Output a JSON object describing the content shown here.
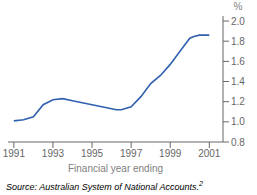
{
  "chart_data": {
    "type": "line",
    "xlabel": "Financial year ending",
    "ylabel": "%",
    "x": [
      1991,
      1991.5,
      1992,
      1992.5,
      1993,
      1993.5,
      1994,
      1994.5,
      1995,
      1995.5,
      1996,
      1996.25,
      1996.5,
      1997,
      1997.5,
      1998,
      1998.5,
      1999,
      1999.5,
      2000,
      2000.25,
      2000.5,
      2001
    ],
    "values": [
      1.01,
      1.02,
      1.05,
      1.17,
      1.22,
      1.23,
      1.21,
      1.19,
      1.17,
      1.15,
      1.13,
      1.12,
      1.12,
      1.15,
      1.25,
      1.38,
      1.46,
      1.57,
      1.7,
      1.83,
      1.85,
      1.86,
      1.86
    ],
    "color": "#3060b0",
    "xlim": [
      1990.7,
      2001.7
    ],
    "ylim": [
      0.8,
      2.05
    ],
    "xticks": [
      1991,
      1993,
      1995,
      1997,
      1999,
      2001
    ],
    "yticks": [
      0.8,
      {
        "value": 1.0,
        "label": "1.0"
      },
      1.2,
      1.4,
      1.6,
      1.8,
      {
        "value": 2.0,
        "label": "2.0"
      }
    ],
    "grid": false,
    "annotations": [
      "Source: Australian System of National Accounts.",
      "2"
    ]
  }
}
